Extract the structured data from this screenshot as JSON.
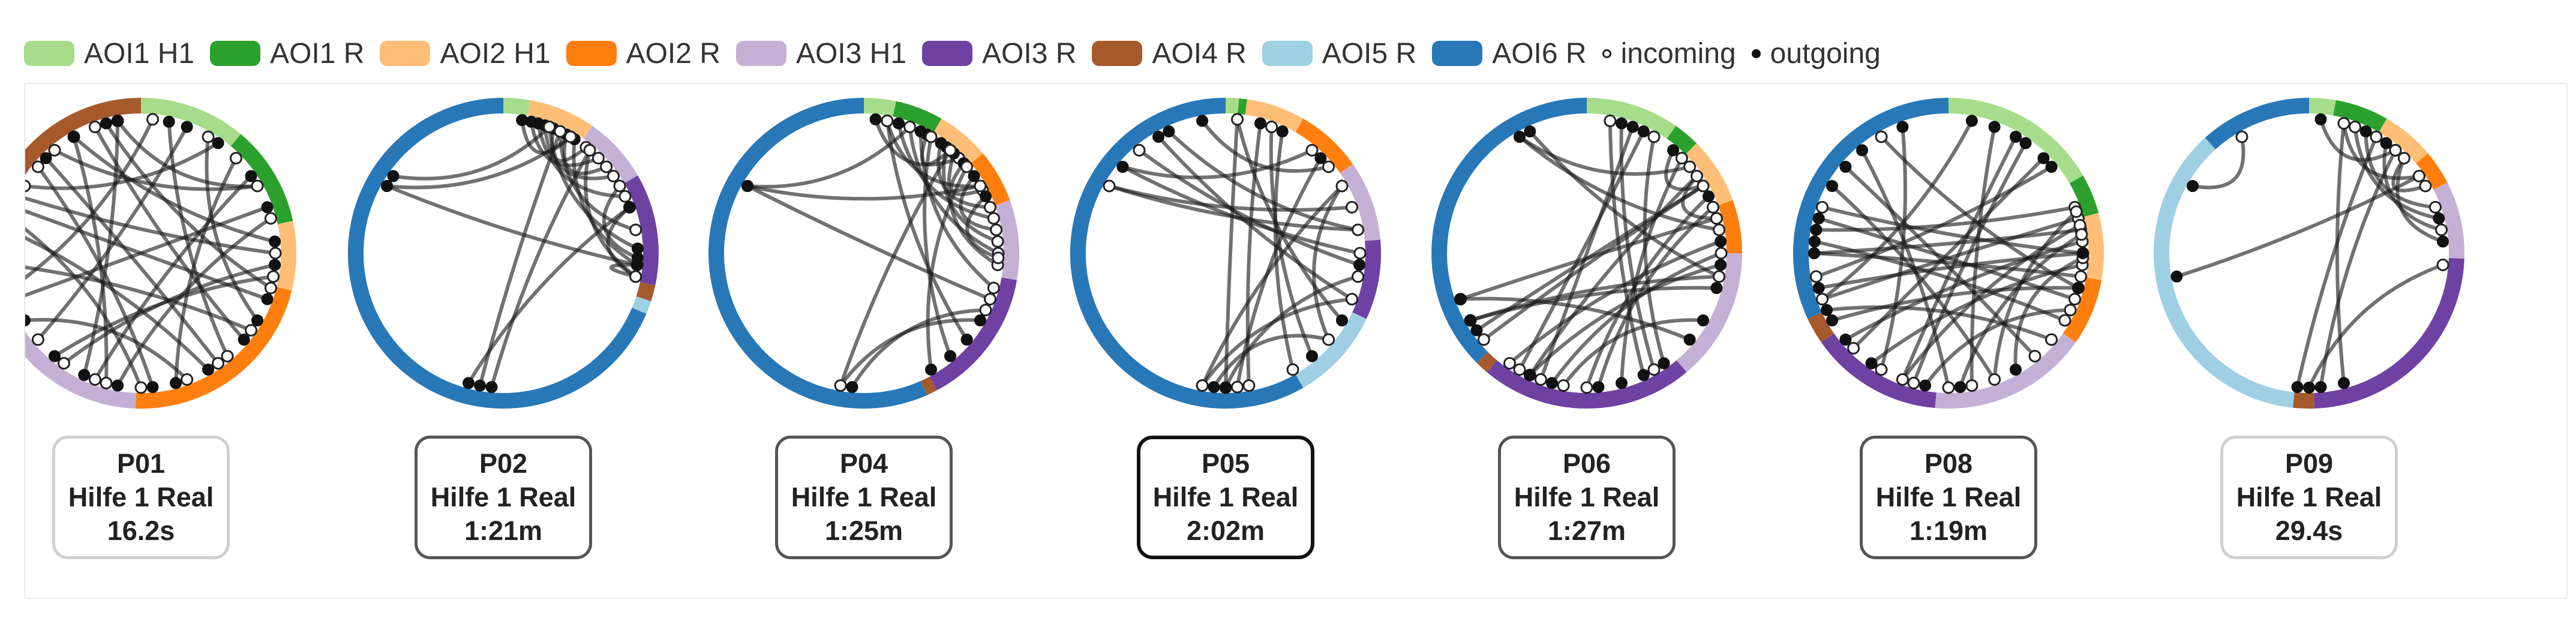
{
  "legend": [
    {
      "label": "AOI1 H1",
      "color": "#a6dc8a",
      "kind": "swatch"
    },
    {
      "label": "AOI1 R",
      "color": "#2ca02c",
      "kind": "swatch"
    },
    {
      "label": "AOI2 H1",
      "color": "#ffbe77",
      "kind": "swatch"
    },
    {
      "label": "AOI2 R",
      "color": "#ff7f0e",
      "kind": "swatch"
    },
    {
      "label": "AOI3 H1",
      "color": "#c5b0d5",
      "kind": "swatch"
    },
    {
      "label": "AOI3 R",
      "color": "#6f41a3",
      "kind": "swatch"
    },
    {
      "label": "AOI4 R",
      "color": "#a65a2c",
      "kind": "swatch"
    },
    {
      "label": "AOI5 R",
      "color": "#9fcfe3",
      "kind": "swatch"
    },
    {
      "label": "AOI6 R",
      "color": "#2878b8",
      "kind": "swatch"
    },
    {
      "label": "incoming",
      "kind": "dot-open"
    },
    {
      "label": "outgoing",
      "kind": "dot-filled"
    }
  ],
  "participants": [
    {
      "id": "P01",
      "task": "Hilfe 1 Real",
      "duration": "16.2s",
      "card_style": "light",
      "ring": [
        {
          "aoi": "AOI1 H1",
          "color": "#a6dc8a",
          "span": [
            0,
            40
          ]
        },
        {
          "aoi": "AOI1 R",
          "color": "#2ca02c",
          "span": [
            40,
            78
          ]
        },
        {
          "aoi": "AOI2 H1",
          "color": "#ffbe77",
          "span": [
            78,
            104
          ]
        },
        {
          "aoi": "AOI2 R",
          "color": "#ff7f0e",
          "span": [
            104,
            182
          ]
        },
        {
          "aoi": "AOI3 H1",
          "color": "#c5b0d5",
          "span": [
            182,
            260
          ]
        },
        {
          "aoi": "AOI3 R",
          "color": "#6f41a3",
          "span": [
            260,
            274
          ]
        },
        {
          "aoi": "AOI4 R",
          "color": "#a65a2c",
          "span": [
            274,
            360
          ]
        }
      ],
      "transitions": [
        [
          12,
          140
        ],
        [
          20,
          230
        ],
        [
          35,
          300
        ],
        [
          55,
          200
        ],
        [
          60,
          320
        ],
        [
          70,
          250
        ],
        [
          85,
          330
        ],
        [
          95,
          215
        ],
        [
          110,
          290
        ],
        [
          120,
          30
        ],
        [
          130,
          340
        ],
        [
          150,
          280
        ],
        [
          165,
          45
        ],
        [
          175,
          310
        ],
        [
          190,
          75
        ],
        [
          205,
          350
        ],
        [
          220,
          100
        ],
        [
          240,
          160
        ],
        [
          255,
          5
        ],
        [
          265,
          125
        ],
        [
          285,
          180
        ],
        [
          295,
          90
        ],
        [
          315,
          145
        ],
        [
          330,
          195
        ],
        [
          345,
          105
        ],
        [
          350,
          60
        ]
      ]
    },
    {
      "id": "P02",
      "task": "Hilfe 1 Real",
      "duration": "1:21m",
      "card_style": "dark",
      "ring": [
        {
          "aoi": "AOI1 H1",
          "color": "#a6dc8a",
          "span": [
            0,
            10
          ]
        },
        {
          "aoi": "AOI2 H1",
          "color": "#ffbe77",
          "span": [
            10,
            35
          ]
        },
        {
          "aoi": "AOI3 H1",
          "color": "#c5b0d5",
          "span": [
            35,
            60
          ]
        },
        {
          "aoi": "AOI3 R",
          "color": "#6f41a3",
          "span": [
            60,
            102
          ]
        },
        {
          "aoi": "AOI4 R",
          "color": "#a65a2c",
          "span": [
            102,
            108
          ]
        },
        {
          "aoi": "AOI5 R",
          "color": "#9fcfe3",
          "span": [
            108,
            113
          ]
        },
        {
          "aoi": "AOI6 R",
          "color": "#2878b8",
          "span": [
            113,
            360
          ]
        }
      ],
      "transitions": [
        [
          8,
          30
        ],
        [
          12,
          45
        ],
        [
          18,
          55
        ],
        [
          22,
          38
        ],
        [
          28,
          50
        ],
        [
          15,
          65
        ],
        [
          25,
          80
        ],
        [
          32,
          95
        ],
        [
          40,
          100
        ],
        [
          300,
          30
        ],
        [
          300,
          95
        ],
        [
          305,
          20
        ],
        [
          185,
          40
        ],
        [
          190,
          25
        ],
        [
          195,
          70
        ],
        [
          95,
          100
        ],
        [
          70,
          100
        ],
        [
          88,
          20
        ],
        [
          92,
          60
        ]
      ]
    },
    {
      "id": "P04",
      "task": "Hilfe 1 Real",
      "duration": "1:25m",
      "card_style": "dark",
      "ring": [
        {
          "aoi": "AOI1 H1",
          "color": "#a6dc8a",
          "span": [
            0,
            12
          ]
        },
        {
          "aoi": "AOI1 R",
          "color": "#2ca02c",
          "span": [
            12,
            30
          ]
        },
        {
          "aoi": "AOI2 H1",
          "color": "#ffbe77",
          "span": [
            30,
            50
          ]
        },
        {
          "aoi": "AOI2 R",
          "color": "#ff7f0e",
          "span": [
            50,
            70
          ]
        },
        {
          "aoi": "AOI3 H1",
          "color": "#c5b0d5",
          "span": [
            70,
            100
          ]
        },
        {
          "aoi": "AOI3 R",
          "color": "#6f41a3",
          "span": [
            100,
            152
          ]
        },
        {
          "aoi": "AOI4 R",
          "color": "#a65a2c",
          "span": [
            152,
            156
          ]
        },
        {
          "aoi": "AOI6 R",
          "color": "#2878b8",
          "span": [
            156,
            360
          ]
        }
      ],
      "transitions": [
        [
          5,
          45
        ],
        [
          10,
          60
        ],
        [
          15,
          75
        ],
        [
          20,
          90
        ],
        [
          25,
          105
        ],
        [
          28,
          40
        ],
        [
          35,
          70
        ],
        [
          38,
          85
        ],
        [
          42,
          95
        ],
        [
          48,
          62
        ],
        [
          55,
          80
        ],
        [
          65,
          92
        ],
        [
          300,
          20
        ],
        [
          300,
          60
        ],
        [
          300,
          110
        ],
        [
          190,
          40
        ],
        [
          185,
          115
        ],
        [
          130,
          10
        ],
        [
          140,
          30
        ],
        [
          150,
          50
        ],
        [
          120,
          190
        ]
      ]
    },
    {
      "id": "P05",
      "task": "Hilfe 1 Real",
      "duration": "2:02m",
      "card_style": "bold",
      "ring": [
        {
          "aoi": "AOI1 H1",
          "color": "#a6dc8a",
          "span": [
            0,
            5
          ]
        },
        {
          "aoi": "AOI1 R",
          "color": "#2ca02c",
          "span": [
            5,
            8
          ]
        },
        {
          "aoi": "AOI2 H1",
          "color": "#ffbe77",
          "span": [
            8,
            30
          ]
        },
        {
          "aoi": "AOI2 R",
          "color": "#ff7f0e",
          "span": [
            30,
            55
          ]
        },
        {
          "aoi": "AOI3 H1",
          "color": "#c5b0d5",
          "span": [
            55,
            85
          ]
        },
        {
          "aoi": "AOI3 R",
          "color": "#6f41a3",
          "span": [
            85,
            115
          ]
        },
        {
          "aoi": "AOI5 R",
          "color": "#9fcfe3",
          "span": [
            115,
            150
          ]
        },
        {
          "aoi": "AOI6 R",
          "color": "#2878b8",
          "span": [
            150,
            360
          ]
        }
      ],
      "transitions": [
        [
          310,
          40
        ],
        [
          310,
          90
        ],
        [
          300,
          70
        ],
        [
          5,
          180
        ],
        [
          15,
          170
        ],
        [
          25,
          150
        ],
        [
          45,
          175
        ],
        [
          60,
          190
        ],
        [
          80,
          300
        ],
        [
          95,
          320
        ],
        [
          110,
          190
        ],
        [
          120,
          5
        ],
        [
          130,
          60
        ],
        [
          140,
          20
        ],
        [
          180,
          100
        ],
        [
          185,
          130
        ],
        [
          330,
          110
        ],
        [
          335,
          80
        ],
        [
          350,
          50
        ]
      ]
    },
    {
      "id": "P06",
      "task": "Hilfe 1 Real",
      "duration": "1:27m",
      "card_style": "dark",
      "ring": [
        {
          "aoi": "AOI1 H1",
          "color": "#a6dc8a",
          "span": [
            0,
            35
          ]
        },
        {
          "aoi": "AOI1 R",
          "color": "#2ca02c",
          "span": [
            35,
            45
          ]
        },
        {
          "aoi": "AOI2 H1",
          "color": "#ffbe77",
          "span": [
            45,
            70
          ]
        },
        {
          "aoi": "AOI2 R",
          "color": "#ff7f0e",
          "span": [
            70,
            90
          ]
        },
        {
          "aoi": "AOI3 H1",
          "color": "#c5b0d5",
          "span": [
            90,
            140
          ]
        },
        {
          "aoi": "AOI3 R",
          "color": "#6f41a3",
          "span": [
            140,
            220
          ]
        },
        {
          "aoi": "AOI4 R",
          "color": "#a65a2c",
          "span": [
            220,
            225
          ]
        },
        {
          "aoi": "AOI6 R",
          "color": "#2878b8",
          "span": [
            225,
            360
          ]
        }
      ],
      "transitions": [
        [
          330,
          50
        ],
        [
          330,
          80
        ],
        [
          335,
          100
        ],
        [
          15,
          150
        ],
        [
          20,
          200
        ],
        [
          25,
          210
        ],
        [
          40,
          60
        ],
        [
          55,
          75
        ],
        [
          60,
          230
        ],
        [
          65,
          180
        ],
        [
          85,
          215
        ],
        [
          95,
          205
        ],
        [
          105,
          240
        ],
        [
          120,
          190
        ],
        [
          130,
          250
        ],
        [
          145,
          30
        ],
        [
          155,
          10
        ],
        [
          165,
          45
        ],
        [
          175,
          70
        ],
        [
          195,
          90
        ],
        [
          205,
          55
        ],
        [
          240,
          100
        ],
        [
          250,
          75
        ],
        [
          235,
          60
        ]
      ]
    },
    {
      "id": "P08",
      "task": "Hilfe 1 Real",
      "duration": "1:19m",
      "card_style": "dark",
      "ring": [
        {
          "aoi": "AOI1 H1",
          "color": "#a6dc8a",
          "span": [
            0,
            60
          ]
        },
        {
          "aoi": "AOI1 R",
          "color": "#2ca02c",
          "span": [
            60,
            75
          ]
        },
        {
          "aoi": "AOI2 H1",
          "color": "#ffbe77",
          "span": [
            75,
            100
          ]
        },
        {
          "aoi": "AOI2 R",
          "color": "#ff7f0e",
          "span": [
            100,
            125
          ]
        },
        {
          "aoi": "AOI3 H1",
          "color": "#c5b0d5",
          "span": [
            125,
            185
          ]
        },
        {
          "aoi": "AOI3 R",
          "color": "#6f41a3",
          "span": [
            185,
            235
          ]
        },
        {
          "aoi": "AOI4 R",
          "color": "#a65a2c",
          "span": [
            235,
            245
          ]
        },
        {
          "aoi": "AOI6 R",
          "color": "#2878b8",
          "span": [
            245,
            360
          ]
        }
      ],
      "transitions": [
        [
          270,
          80
        ],
        [
          270,
          100
        ],
        [
          275,
          120
        ],
        [
          280,
          70
        ],
        [
          285,
          110
        ],
        [
          255,
          90
        ],
        [
          250,
          75
        ],
        [
          245,
          130
        ],
        [
          240,
          105
        ],
        [
          230,
          85
        ],
        [
          215,
          95
        ],
        [
          200,
          78
        ],
        [
          190,
          115
        ],
        [
          175,
          82
        ],
        [
          160,
          72
        ],
        [
          150,
          92
        ],
        [
          20,
          170
        ],
        [
          30,
          200
        ],
        [
          10,
          250
        ],
        [
          45,
          225
        ],
        [
          35,
          195
        ],
        [
          300,
          160
        ],
        [
          310,
          140
        ],
        [
          320,
          180
        ],
        [
          340,
          210
        ],
        [
          50,
          260
        ],
        [
          90,
          290
        ],
        [
          105,
          330
        ]
      ]
    },
    {
      "id": "P09",
      "task": "Hilfe 1 Real",
      "duration": "29.4s",
      "card_style": "light",
      "ring": [
        {
          "aoi": "AOI1 H1",
          "color": "#a6dc8a",
          "span": [
            0,
            10
          ]
        },
        {
          "aoi": "AOI1 R",
          "color": "#2ca02c",
          "span": [
            10,
            30
          ]
        },
        {
          "aoi": "AOI2 H1",
          "color": "#ffbe77",
          "span": [
            30,
            50
          ]
        },
        {
          "aoi": "AOI2 R",
          "color": "#ff7f0e",
          "span": [
            50,
            63
          ]
        },
        {
          "aoi": "AOI3 H1",
          "color": "#c5b0d5",
          "span": [
            63,
            92
          ]
        },
        {
          "aoi": "AOI3 R",
          "color": "#6f41a3",
          "span": [
            92,
            178
          ]
        },
        {
          "aoi": "AOI4 R",
          "color": "#a65a2c",
          "span": [
            178,
            186
          ]
        },
        {
          "aoi": "AOI5 R",
          "color": "#9fcfe3",
          "span": [
            186,
            318
          ]
        },
        {
          "aoi": "AOI6 R",
          "color": "#2878b8",
          "span": [
            318,
            360
          ]
        }
      ],
      "transitions": [
        [
          5,
          40
        ],
        [
          15,
          55
        ],
        [
          25,
          70
        ],
        [
          35,
          80
        ],
        [
          45,
          60
        ],
        [
          300,
          330
        ],
        [
          260,
          55
        ],
        [
          175,
          40
        ],
        [
          185,
          30
        ],
        [
          165,
          15
        ],
        [
          85,
          45
        ],
        [
          75,
          20
        ],
        [
          180,
          95
        ]
      ]
    }
  ]
}
